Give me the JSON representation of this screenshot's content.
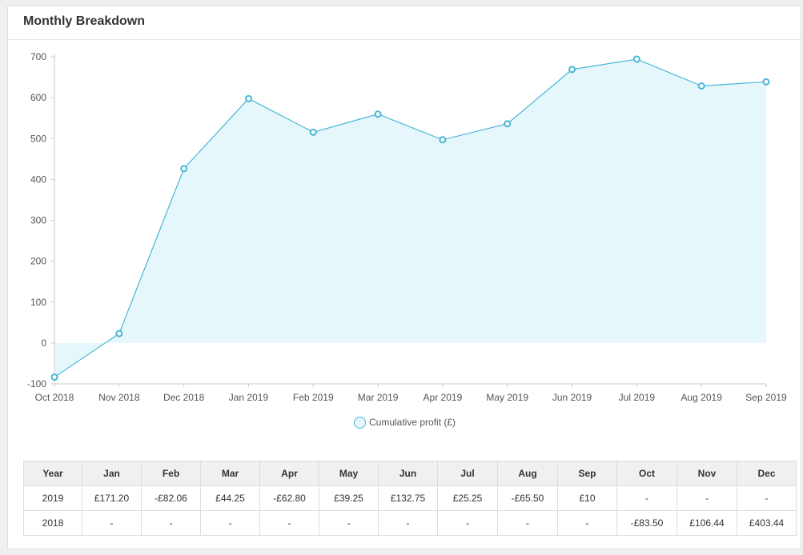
{
  "panel": {
    "title": "Monthly Breakdown"
  },
  "colors": {
    "line": "#47b6d6",
    "fill": "#e6f7fc",
    "axis": "#c8c8c8"
  },
  "chart_data": {
    "type": "area",
    "categories": [
      "Oct 2018",
      "Nov 2018",
      "Dec 2018",
      "Jan 2019",
      "Feb 2019",
      "Mar 2019",
      "Apr 2019",
      "May 2019",
      "Jun 2019",
      "Jul 2019",
      "Aug 2019",
      "Sep 2019"
    ],
    "series": [
      {
        "name": "Cumulative profit (£)",
        "values": [
          -83.5,
          22.94,
          426.38,
          597.58,
          515.52,
          559.77,
          496.97,
          536.22,
          668.97,
          694.22,
          628.72,
          638.72
        ]
      }
    ],
    "ylim": [
      -100,
      700
    ],
    "yticks": [
      700,
      600,
      500,
      400,
      300,
      200,
      100,
      0,
      -100
    ],
    "grid": false,
    "legend_position": "bottom-center"
  },
  "table": {
    "headers": [
      "Year",
      "Jan",
      "Feb",
      "Mar",
      "Apr",
      "May",
      "Jun",
      "Jul",
      "Aug",
      "Sep",
      "Oct",
      "Nov",
      "Dec"
    ],
    "rows": [
      [
        "2019",
        "£171.20",
        "-£82.06",
        "£44.25",
        "-£62.80",
        "£39.25",
        "£132.75",
        "£25.25",
        "-£65.50",
        "£10",
        "-",
        "-",
        "-"
      ],
      [
        "2018",
        "-",
        "-",
        "-",
        "-",
        "-",
        "-",
        "-",
        "-",
        "-",
        "-£83.50",
        "£106.44",
        "£403.44"
      ]
    ]
  }
}
